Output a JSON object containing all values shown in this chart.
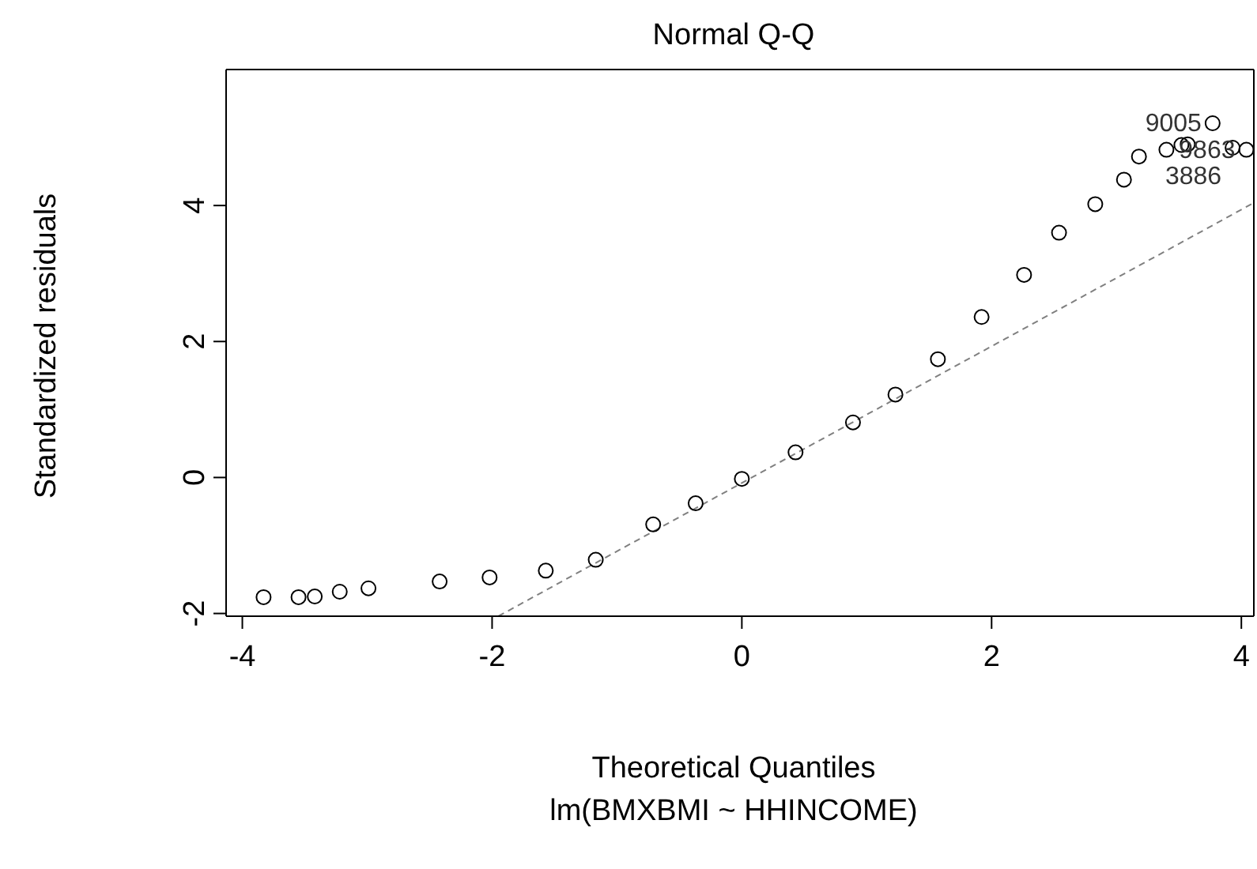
{
  "chart_data": {
    "type": "scatter",
    "title": "Normal Q-Q",
    "xlabel": "Theoretical Quantiles",
    "subtitle": "lm(BMXBMI ~ HHINCOME)",
    "ylabel": "Standardized residuals",
    "xlim": [
      -4.13,
      4.1
    ],
    "ylim": [
      -2.04,
      6.0
    ],
    "xticks": [
      -4,
      -2,
      0,
      2,
      4
    ],
    "yticks": [
      -2,
      0,
      2,
      4
    ],
    "grid": false,
    "legend": false,
    "series": [
      {
        "type": "scatter",
        "color": "#000000",
        "marker": "circle",
        "x": [
          -3.83,
          -3.55,
          -3.42,
          -3.22,
          -2.99,
          -2.42,
          -2.02,
          -1.57,
          -1.17,
          -0.71,
          -0.37,
          0.0,
          0.43,
          0.89,
          1.23,
          1.57,
          1.92,
          2.26,
          2.54,
          2.83,
          3.06,
          3.18,
          3.4,
          3.52,
          3.57,
          3.77,
          3.93,
          4.04
        ],
        "values": [
          -1.76,
          -1.76,
          -1.75,
          -1.68,
          -1.63,
          -1.53,
          -1.47,
          -1.37,
          -1.21,
          -0.69,
          -0.38,
          -0.02,
          0.37,
          0.81,
          1.22,
          1.74,
          2.36,
          2.98,
          3.6,
          4.02,
          4.38,
          4.72,
          4.82,
          4.89,
          4.9,
          5.21,
          4.85,
          4.82
        ]
      },
      {
        "type": "line",
        "color": "#808080",
        "line_style": "dashed",
        "marker": "none",
        "x": [
          -1.95,
          4.1
        ],
        "values": [
          -2.04,
          4.04
        ]
      }
    ],
    "annotations": [
      {
        "text": "9005",
        "x": 3.77,
        "y": 5.21
      },
      {
        "text": "3886",
        "x": 3.93,
        "y": 4.85
      },
      {
        "text": "9863",
        "x": 4.04,
        "y": 4.82
      }
    ]
  }
}
